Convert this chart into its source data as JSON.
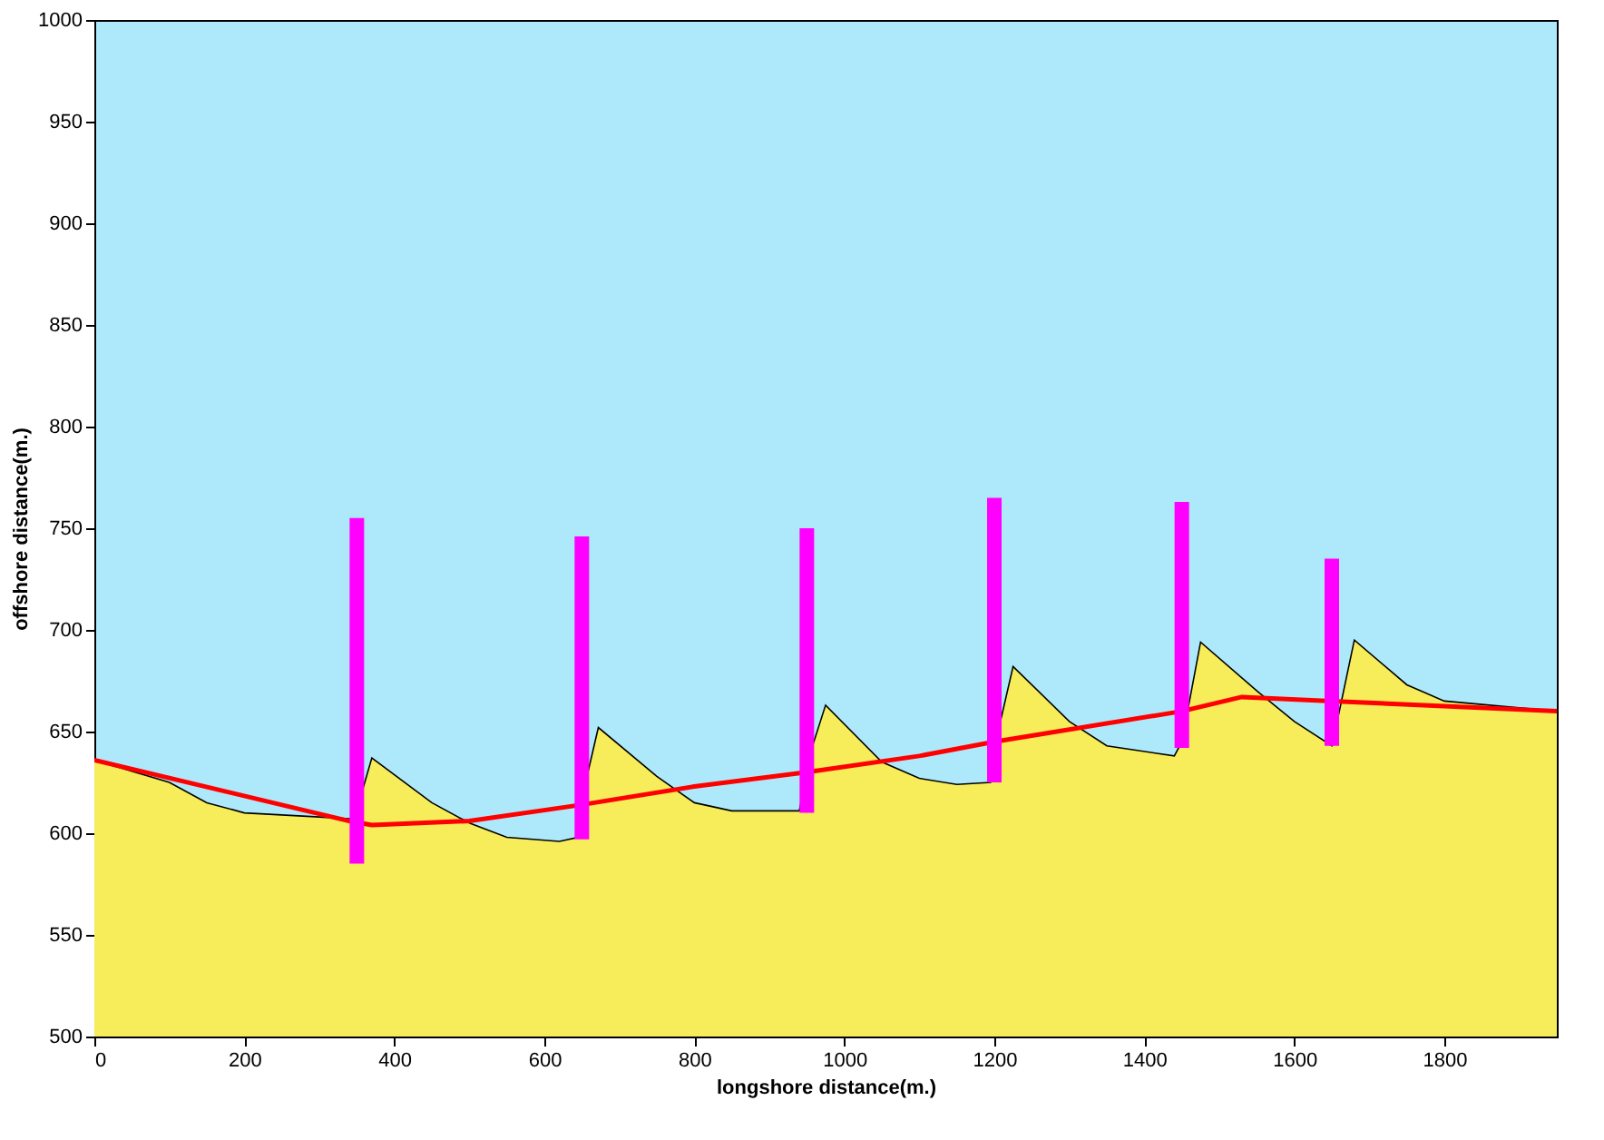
{
  "chart_data": {
    "type": "area",
    "xlabel": "longshore distance(m.)",
    "ylabel": "offshore distance(m.)",
    "xlim": [
      0,
      1950
    ],
    "xticks": [
      0,
      200,
      400,
      600,
      800,
      1000,
      1200,
      1400,
      1600,
      1800
    ],
    "ylim": [
      500,
      1000
    ],
    "yticks": [
      500,
      550,
      600,
      650,
      700,
      750,
      800,
      850,
      900,
      950,
      1000
    ],
    "grid": false,
    "series": [
      {
        "color": "#f7ec5a",
        "x": [
          0,
          100,
          150,
          200,
          300,
          345,
          355,
          370,
          450,
          500,
          550,
          620,
          645,
          655,
          672,
          750,
          800,
          850,
          940,
          955,
          975,
          1050,
          1100,
          1150,
          1195,
          1205,
          1225,
          1300,
          1350,
          1440,
          1450,
          1475,
          1550,
          1600,
          1650,
          1660,
          1680,
          1750,
          1800,
          1950
        ],
        "values": [
          636,
          625,
          615,
          610,
          608,
          607,
          618,
          637,
          615,
          605,
          598,
          596,
          598,
          625,
          652,
          628,
          615,
          611,
          611,
          640,
          663,
          635,
          627,
          624,
          625,
          650,
          682,
          655,
          643,
          638,
          645,
          694,
          670,
          655,
          643,
          660,
          695,
          673,
          665,
          660
        ]
      },
      {
        "type": "line",
        "color": "#ff0000",
        "x": [
          0,
          340,
          370,
          500,
          650,
          800,
          950,
          1100,
          1200,
          1450,
          1530,
          1650,
          1950
        ],
        "values": [
          636,
          606,
          604,
          606,
          614,
          623,
          630,
          638,
          645,
          660,
          667,
          665,
          660
        ]
      },
      {
        "type": "bar",
        "color": "#ff00ff",
        "x": [
          350,
          650,
          950,
          1200,
          1450,
          1650
        ],
        "base": [
          585,
          597,
          610,
          625,
          642,
          643
        ],
        "values": [
          170,
          149,
          140,
          140,
          121,
          92
        ]
      }
    ]
  }
}
